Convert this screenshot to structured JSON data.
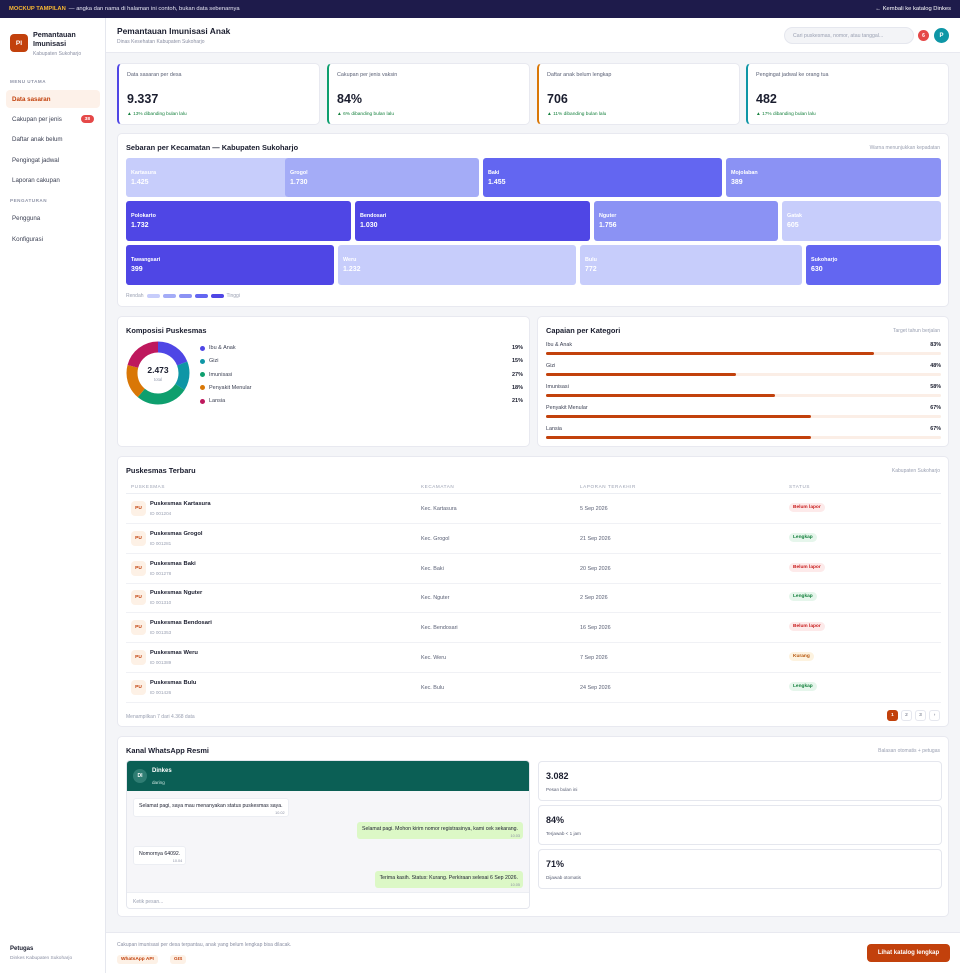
{
  "topbar": {
    "tag": "MOCKUP TAMPILAN",
    "notice": "— angka dan nama di halaman ini contoh, bukan data sebenarnya",
    "back": "← Kembali ke katalog Dinkes"
  },
  "brand": {
    "logo": "PI",
    "title_line1": "Pemantauan",
    "title_line2": "Imunisasi",
    "subtitle": "Kabupaten Sukoharjo"
  },
  "sidebar": {
    "section_main": "MENU UTAMA",
    "items": [
      {
        "label": "Data sasaran",
        "active": true
      },
      {
        "label": "Cakupan per jenis",
        "badge": "38"
      },
      {
        "label": "Daftar anak belum"
      },
      {
        "label": "Pengingat jadwal"
      },
      {
        "label": "Laporan cakupan"
      }
    ],
    "section_settings": "PENGATURAN",
    "settings": [
      {
        "label": "Pengguna"
      },
      {
        "label": "Konfigurasi"
      }
    ],
    "footer_name": "Petugas",
    "footer_sub": "Dinkes Kabupaten Sukoharjo"
  },
  "header": {
    "title": "Pemantauan Imunisasi Anak",
    "subtitle": "Dinas Kesehatan Kabupaten Sukoharjo",
    "search_placeholder": "Cari puskesmas, nomor, atau tanggal...",
    "notif_count": "6",
    "avatar": "P"
  },
  "kpis": [
    {
      "label": "Data sasaran per desa",
      "value": "9.337",
      "delta": "▲ 13% dibanding bulan lalu",
      "color": "#4f46e5"
    },
    {
      "label": "Cakupan per jenis vaksin",
      "value": "84%",
      "delta": "▲ 6% dibanding bulan lalu",
      "color": "#0e9f6e"
    },
    {
      "label": "Daftar anak belum lengkap",
      "value": "706",
      "delta": "▲ 11% dibanding bulan lalu",
      "color": "#d97706"
    },
    {
      "label": "Pengingat jadwal ke orang tua",
      "value": "482",
      "delta": "▲ 17% dibanding bulan lalu",
      "color": "#0e96a6"
    }
  ],
  "treemap": {
    "title": "Sebaran per Kecamatan — Kabupaten Sukoharjo",
    "note": "Warna menunjukkan kepadatan",
    "tiles": [
      {
        "name": "Kartasura",
        "value": "1.425",
        "color": "#c7cdfb"
      },
      {
        "name": "Grogol",
        "value": "1.730",
        "color": "#a4acf7"
      },
      {
        "name": "Baki",
        "value": "1.455",
        "color": "#6366f1"
      },
      {
        "name": "Mojolaban",
        "value": "389",
        "color": "#8b92f4"
      },
      {
        "name": "Polokarto",
        "value": "1.732",
        "color": "#4f46e5"
      },
      {
        "name": "Bendosari",
        "value": "1.030",
        "color": "#4f46e5"
      },
      {
        "name": "Nguter",
        "value": "1.756",
        "color": "#8b92f4"
      },
      {
        "name": "Tawangsari",
        "value": "399",
        "color": "#4f46e5"
      },
      {
        "name": "Weru",
        "value": "1.232",
        "color": "#c7cdfb"
      },
      {
        "name": "Bulu",
        "value": "772",
        "color": "#c7cdfb"
      },
      {
        "name": "Sukoharjo",
        "value": "630",
        "color": "#6366f1"
      },
      {
        "name": "Gatak",
        "value": "605",
        "color": "#c7cdfb"
      }
    ],
    "legend_low": "Rendah",
    "legend_high": "Tinggi",
    "legend_colors": [
      "#c7cdfb",
      "#a4acf7",
      "#8b92f4",
      "#6366f1",
      "#4f46e5"
    ]
  },
  "composition": {
    "title": "Komposisi Puskesmas",
    "total": "2.473",
    "total_label": "total",
    "items": [
      {
        "label": "Ibu & Anak",
        "pct": "19%",
        "value": 19,
        "color": "#4f46e5"
      },
      {
        "label": "Gizi",
        "pct": "15%",
        "value": 15,
        "color": "#0e96a6"
      },
      {
        "label": "Imunisasi",
        "pct": "27%",
        "value": 27,
        "color": "#0e9f6e"
      },
      {
        "label": "Penyakit Menular",
        "pct": "18%",
        "value": 18,
        "color": "#d97706"
      },
      {
        "label": "Lansia",
        "pct": "21%",
        "value": 21,
        "color": "#be185d"
      }
    ]
  },
  "achievement": {
    "title": "Capaian per Kategori",
    "note": "Target tahun berjalan",
    "items": [
      {
        "label": "Ibu & Anak",
        "pct": "83%",
        "value": 83
      },
      {
        "label": "Gizi",
        "pct": "48%",
        "value": 48
      },
      {
        "label": "Imunisasi",
        "pct": "58%",
        "value": 58
      },
      {
        "label": "Penyakit Menular",
        "pct": "67%",
        "value": 67
      },
      {
        "label": "Lansia",
        "pct": "67%",
        "value": 67
      }
    ]
  },
  "table": {
    "title": "Puskesmas Terbaru",
    "note": "Kabupaten Sukoharjo",
    "columns": [
      "PUSKESMAS",
      "KECAMATAN",
      "LAPORAN TERAKHIR",
      "STATUS"
    ],
    "rows": [
      {
        "icon": "PU",
        "name": "Puskesmas Kartasura",
        "id": "ID 001204",
        "kec": "Kec. Kartasura",
        "date": "5 Sep 2026",
        "status": "Belum lapor",
        "tone": "red"
      },
      {
        "icon": "PU",
        "name": "Puskesmas Grogol",
        "id": "ID 001281",
        "kec": "Kec. Grogol",
        "date": "21 Sep 2026",
        "status": "Lengkap",
        "tone": "green"
      },
      {
        "icon": "PU",
        "name": "Puskesmas Baki",
        "id": "ID 001278",
        "kec": "Kec. Baki",
        "date": "20 Sep 2026",
        "status": "Belum lapor",
        "tone": "red"
      },
      {
        "icon": "PU",
        "name": "Puskesmas Nguter",
        "id": "ID 001310",
        "kec": "Kec. Nguter",
        "date": "2 Sep 2026",
        "status": "Lengkap",
        "tone": "green"
      },
      {
        "icon": "PU",
        "name": "Puskesmas Bendosari",
        "id": "ID 001353",
        "kec": "Kec. Bendosari",
        "date": "16 Sep 2026",
        "status": "Belum lapor",
        "tone": "red"
      },
      {
        "icon": "PU",
        "name": "Puskesmas Weru",
        "id": "ID 001389",
        "kec": "Kec. Weru",
        "date": "7 Sep 2026",
        "status": "Kurang",
        "tone": "amber"
      },
      {
        "icon": "PU",
        "name": "Puskesmas Bulu",
        "id": "ID 001426",
        "kec": "Kec. Bulu",
        "date": "24 Sep 2026",
        "status": "Lengkap",
        "tone": "green"
      }
    ],
    "footer": "Menampilkan 7 dari 4.368 data",
    "pages": [
      "1",
      "2",
      "3",
      "›"
    ]
  },
  "whatsapp": {
    "title": "Kanal WhatsApp Resmi",
    "note": "Balasan otomatis + petugas",
    "contact_avatar": "DI",
    "contact_name": "Dinkes",
    "contact_status": "daring",
    "messages": [
      {
        "dir": "in",
        "text": "Selamat pagi, saya mau menanyakan status puskesmas saya.",
        "time": "10.02"
      },
      {
        "dir": "out",
        "text": "Selamat pagi. Mohon kirim nomor registrasinya, kami cek sekarang.",
        "time": "10.03"
      },
      {
        "dir": "in",
        "text": "Nomornya 64092.",
        "time": "10.04"
      },
      {
        "dir": "out",
        "text": "Terima kasih. Status: Kurang. Perkiraan selesai 6 Sep 2026.",
        "time": "10.05"
      }
    ],
    "input_placeholder": "Ketik pesan...",
    "stats": [
      {
        "value": "3.082",
        "label": "Pesan bulan ini"
      },
      {
        "value": "84%",
        "label": "Terjawab < 1 jam"
      },
      {
        "value": "71%",
        "label": "Dijawab otomatis"
      }
    ]
  },
  "footer": {
    "text": "Cakupan imunisasi per desa terpantau, anak yang belum lengkap bisa dilacak.",
    "chips": [
      "WhatsApp API",
      "GIS"
    ],
    "cta": "Lihat katalog lengkap"
  }
}
